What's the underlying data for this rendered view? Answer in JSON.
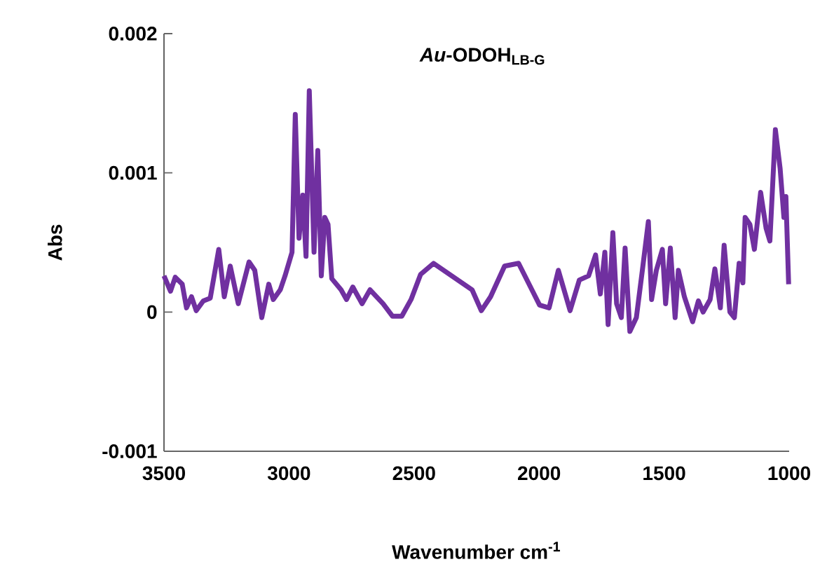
{
  "chart_data": {
    "type": "line",
    "title": "*Au*-ODOH$_{LB-G}$",
    "xlabel": "Wavenumber cm$^{-1}$",
    "ylabel": "Abs",
    "color": "#7030a0",
    "xlim": [
      3500,
      1000
    ],
    "xticks": [
      3500,
      3000,
      2500,
      2000,
      1500,
      1000
    ],
    "ylim": [
      -0.001,
      0.002
    ],
    "yticks": [
      -0.001,
      0,
      0.001,
      0.002
    ],
    "x": [
      3500,
      3474,
      3455,
      3427,
      3410,
      3390,
      3371,
      3343,
      3315,
      3281,
      3259,
      3235,
      3203,
      3160,
      3137,
      3109,
      3081,
      3063,
      3035,
      3016,
      2988,
      2975,
      2960,
      2945,
      2932,
      2919,
      2900,
      2885,
      2871,
      2857,
      2844,
      2829,
      2792,
      2770,
      2745,
      2708,
      2676,
      2624,
      2586,
      2549,
      2512,
      2474,
      2422,
      2268,
      2231,
      2194,
      2138,
      2082,
      2026,
      1998,
      1960,
      1923,
      1876,
      1839,
      1802,
      1774,
      1755,
      1737,
      1724,
      1705,
      1690,
      1671,
      1656,
      1637,
      1611,
      1587,
      1563,
      1550,
      1531,
      1507,
      1494,
      1475,
      1456,
      1443,
      1419,
      1386,
      1363,
      1344,
      1316,
      1297,
      1275,
      1260,
      1237,
      1219,
      1200,
      1185,
      1176,
      1157,
      1139,
      1114,
      1092,
      1077,
      1055,
      1036,
      1021,
      1013,
      1002
    ],
    "values": [
      0.00026,
      0.00015,
      0.00025,
      0.0002,
      3e-05,
      0.00011,
      1e-05,
      8e-05,
      0.0001,
      0.00045,
      0.00011,
      0.00033,
      6e-05,
      0.00036,
      0.0003,
      -4e-05,
      0.0002,
      9e-05,
      0.00016,
      0.00026,
      0.00043,
      0.00142,
      0.00053,
      0.00084,
      0.0004,
      0.00159,
      0.00043,
      0.00116,
      0.00026,
      0.00068,
      0.00063,
      0.00024,
      0.00016,
      9e-05,
      0.00018,
      6e-05,
      0.00016,
      6e-05,
      -3e-05,
      -3e-05,
      9e-05,
      0.00027,
      0.00035,
      0.00016,
      1e-05,
      0.00011,
      0.00033,
      0.00035,
      0.00015,
      5e-05,
      3e-05,
      0.0003,
      1e-05,
      0.00023,
      0.00026,
      0.00041,
      0.00013,
      0.00043,
      -9e-05,
      0.00057,
      6e-05,
      -4e-05,
      0.00046,
      -0.00014,
      -4e-05,
      0.0003,
      0.00065,
      9e-05,
      0.0003,
      0.00045,
      6e-05,
      0.00046,
      -4e-05,
      0.0003,
      0.00011,
      -7e-05,
      8e-05,
      0,
      9e-05,
      0.00031,
      3e-05,
      0.00048,
      0,
      -4e-05,
      0.00035,
      0.00021,
      0.00068,
      0.00063,
      0.00045,
      0.00086,
      0.0006,
      0.00051,
      0.00131,
      0.00103,
      0.00068,
      0.00083,
      0.0002
    ]
  }
}
